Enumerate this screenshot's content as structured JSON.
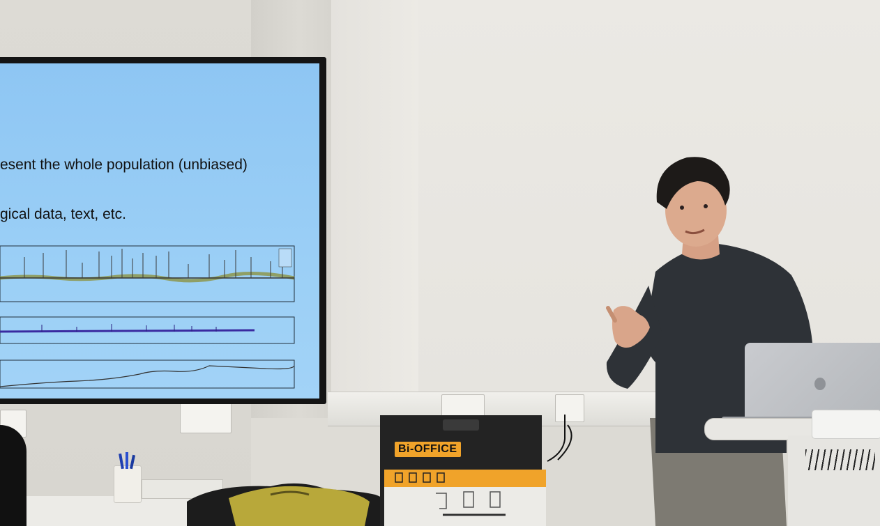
{
  "slide": {
    "line1": "esent the whole population (unbiased)",
    "line2": "gical data, text, etc."
  },
  "flipchart": {
    "brand": "Bi-OFFICE"
  },
  "colors": {
    "screen": "#9bcff6",
    "tv_bezel": "#141414",
    "shirt": "#2e3237",
    "trousers": "#7d7a72",
    "bag": "#b8a83a",
    "flipchart_yellow": "#f0a32a"
  }
}
